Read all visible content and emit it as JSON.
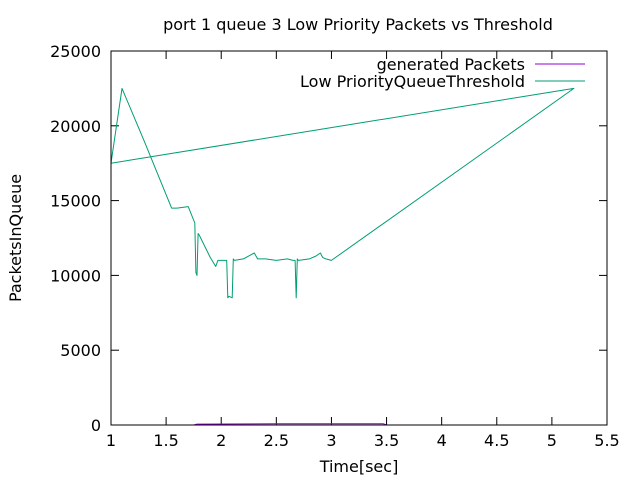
{
  "chart_data": {
    "type": "line",
    "title": "port 1 queue 3 Low Priority Packets vs Threshold",
    "xlabel": "Time[sec]",
    "ylabel": "PacketsInQueue",
    "xlim": [
      1,
      5.5
    ],
    "ylim": [
      0,
      25000
    ],
    "xticks": [
      "1",
      "1.5",
      "2",
      "2.5",
      "3",
      "3.5",
      "4",
      "4.5",
      "5",
      "5.5"
    ],
    "yticks": [
      "0",
      "5000",
      "10000",
      "15000",
      "20000",
      "25000"
    ],
    "grid": false,
    "legend_position": "top-right",
    "series": [
      {
        "name": "generated Packets",
        "color": "#9400d3",
        "x": [
          1.27,
          1.75,
          1.78,
          2.0,
          2.5,
          2.75,
          3.0,
          3.47,
          3.5,
          4.0,
          4.6
        ],
        "y": [
          0,
          0,
          60,
          70,
          80,
          90,
          90,
          90,
          0,
          0,
          0
        ]
      },
      {
        "name": "Low PriorityQueueThreshold",
        "color": "#009e73",
        "x": [
          1.0,
          1.1,
          1.3,
          1.55,
          1.6,
          1.7,
          1.76,
          1.77,
          1.78,
          1.79,
          1.8,
          1.9,
          1.95,
          1.97,
          2.05,
          2.06,
          2.07,
          2.1,
          2.11,
          2.12,
          2.2,
          2.3,
          2.33,
          2.4,
          2.5,
          2.6,
          2.65,
          2.67,
          2.68,
          2.69,
          2.7,
          2.8,
          2.86,
          2.9,
          2.92,
          2.95,
          3.0,
          5.2,
          1.0
        ],
        "y": [
          17500,
          22500,
          19000,
          14500,
          14500,
          14600,
          13500,
          10200,
          10000,
          12800,
          12700,
          11200,
          10600,
          11000,
          11000,
          8500,
          8600,
          8500,
          11100,
          11000,
          11100,
          11500,
          11100,
          11100,
          11000,
          11100,
          11000,
          11000,
          8500,
          11100,
          11000,
          11100,
          11300,
          11500,
          11200,
          11100,
          11000,
          22500,
          17500
        ]
      }
    ]
  }
}
